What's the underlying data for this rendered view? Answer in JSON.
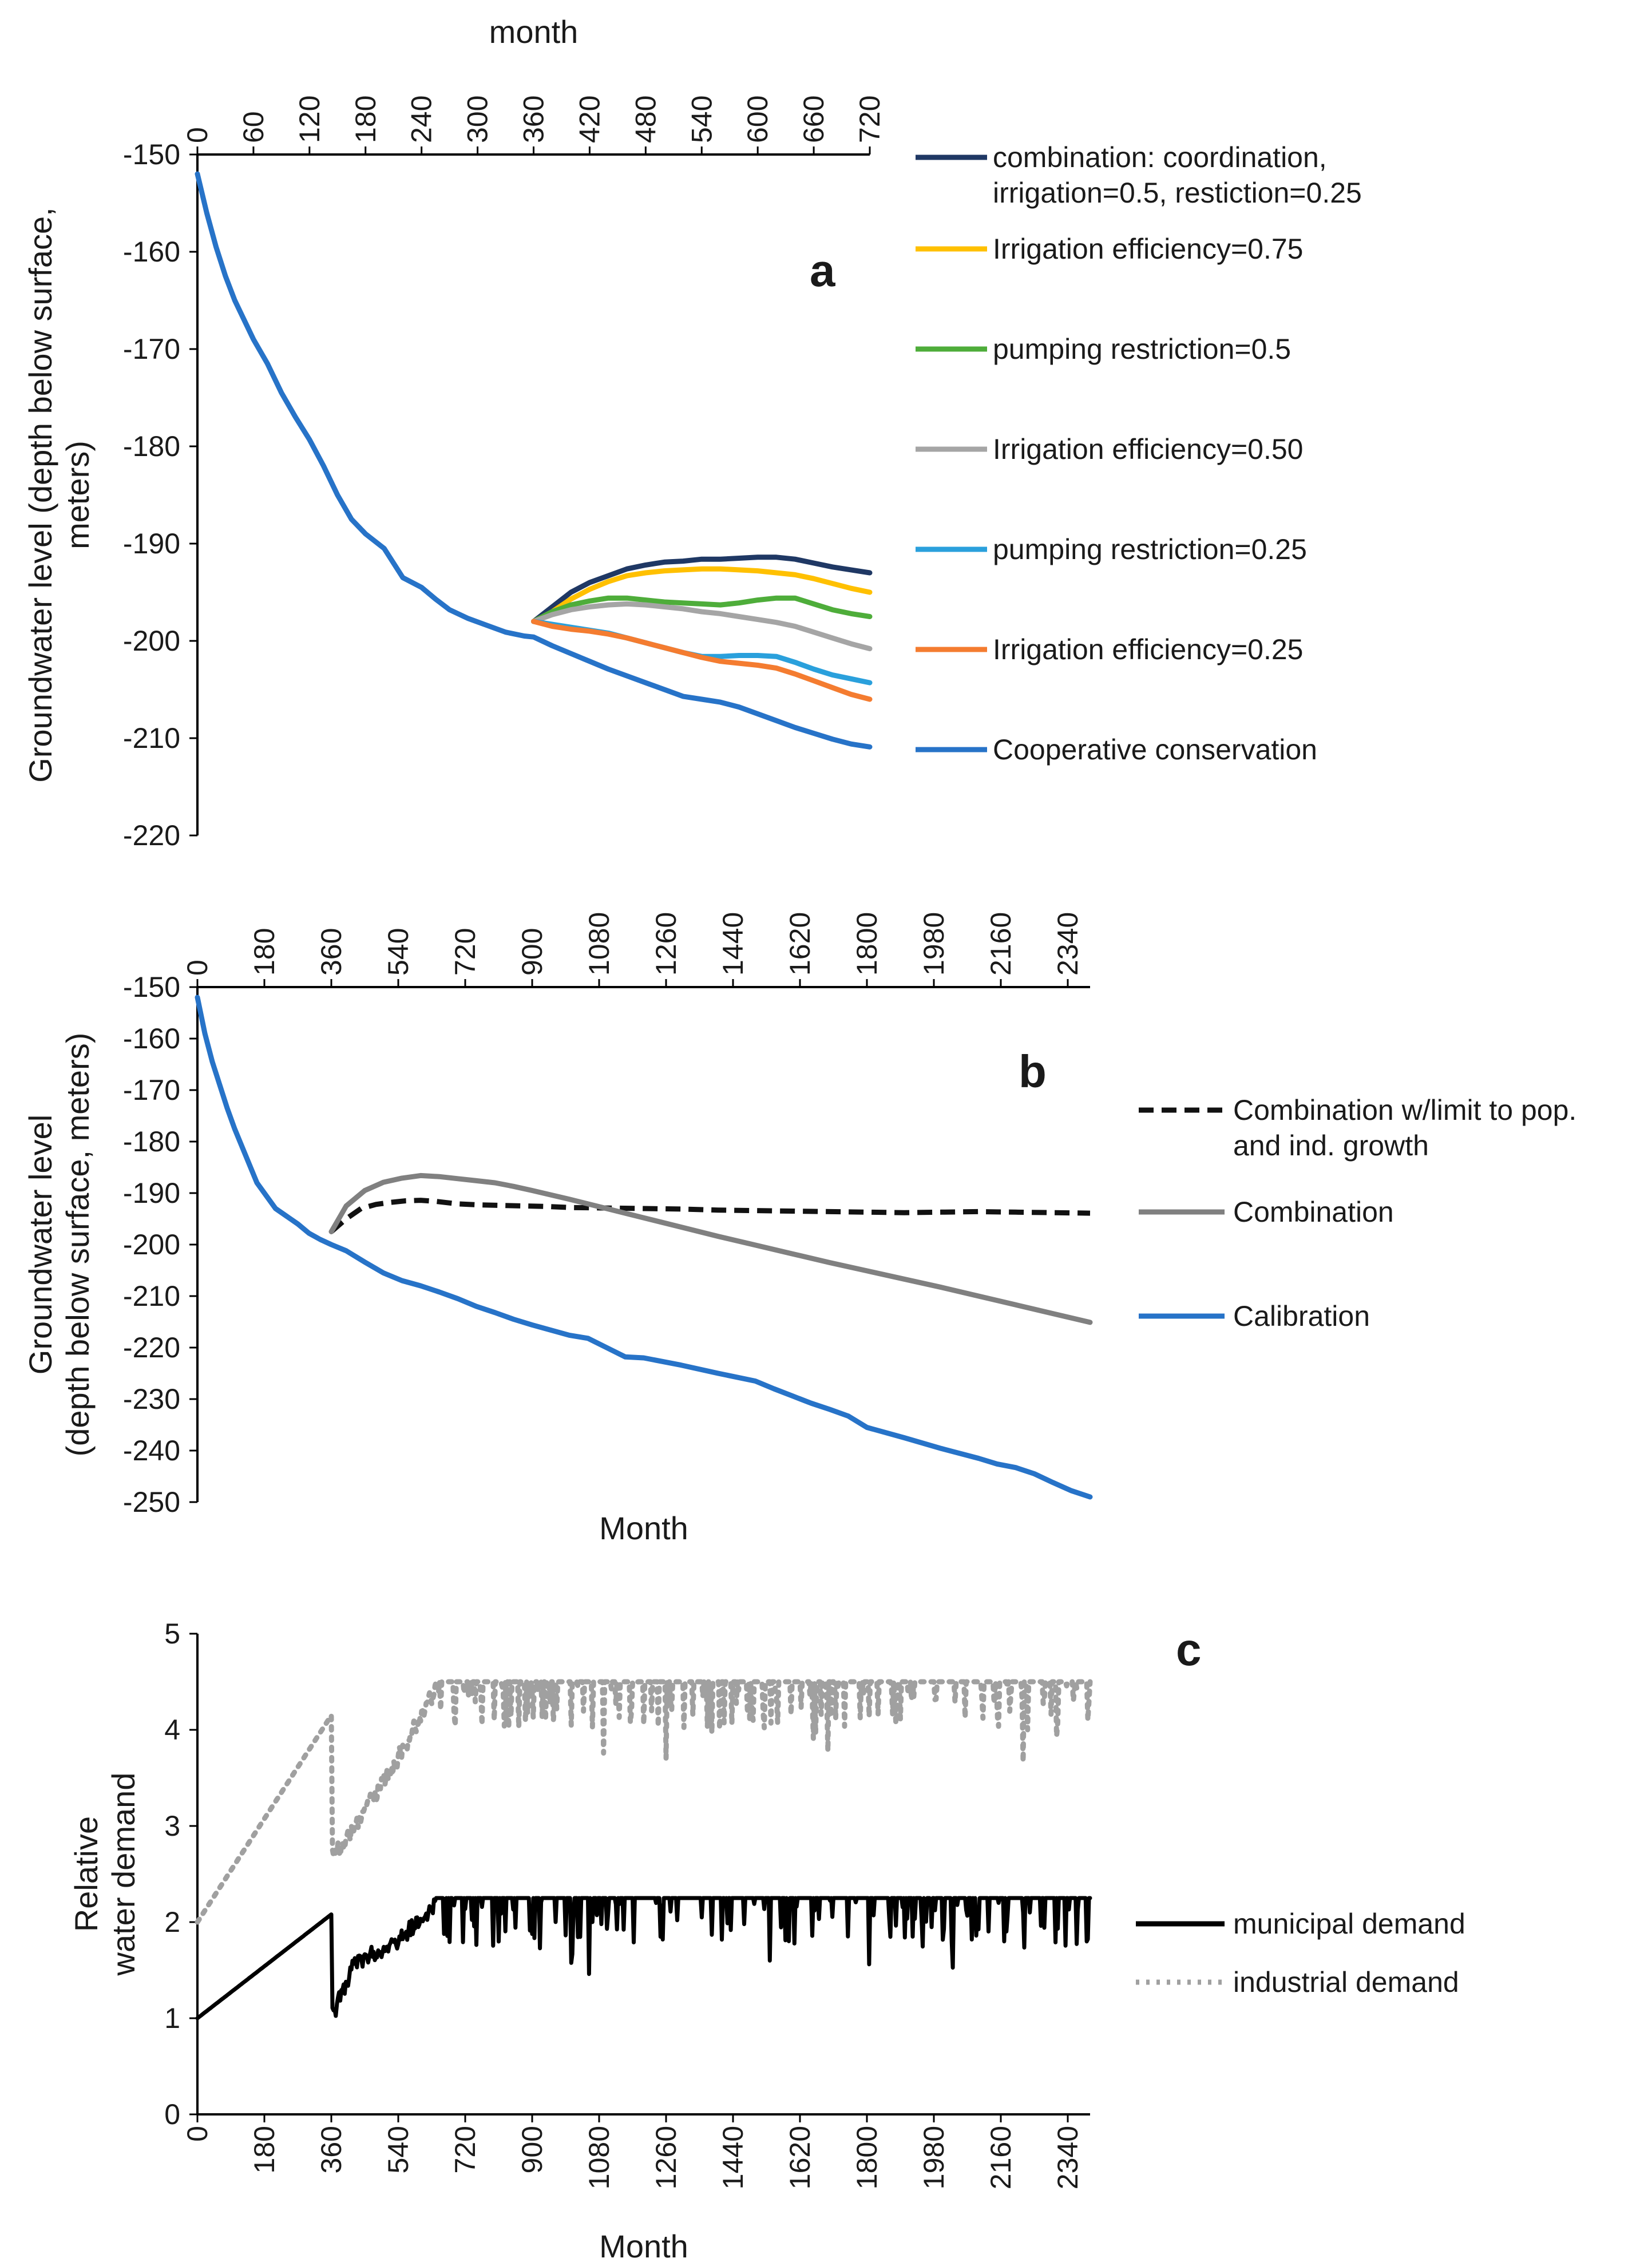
{
  "chart_data": [
    {
      "id": "a",
      "type": "line",
      "panel_label": "a",
      "title": "",
      "xlabel": "month",
      "ylabel_lines": [
        "Groundwater level (depth below surface,",
        "meters)"
      ],
      "xlim": [
        0,
        720
      ],
      "ylim": [
        -220,
        -150
      ],
      "xticks": [
        0,
        60,
        120,
        180,
        240,
        300,
        360,
        420,
        480,
        540,
        600,
        660,
        720
      ],
      "yticks": [
        -150,
        -160,
        -170,
        -180,
        -190,
        -200,
        -210,
        -220
      ],
      "legend_position": "right",
      "series": [
        {
          "name": "combination: coordination, irrigation=0.5, restiction=0.25",
          "legend_lines": [
            "combination: coordination,",
            "irrigation=0.5, restiction=0.25"
          ],
          "color": "#1f3864",
          "dash": "",
          "x": [
            360,
            380,
            400,
            420,
            440,
            460,
            480,
            500,
            520,
            540,
            560,
            580,
            600,
            620,
            640,
            660,
            680,
            700,
            720
          ],
          "y": [
            -198,
            -196.5,
            -195,
            -194,
            -193.3,
            -192.6,
            -192.2,
            -191.9,
            -191.8,
            -191.6,
            -191.6,
            -191.5,
            -191.4,
            -191.4,
            -191.6,
            -192,
            -192.4,
            -192.7,
            -193
          ]
        },
        {
          "name": "Irrigation efficiency=0.75",
          "color": "#ffc000",
          "dash": "",
          "x": [
            360,
            380,
            400,
            420,
            440,
            460,
            480,
            500,
            520,
            540,
            560,
            580,
            600,
            620,
            640,
            660,
            680,
            700,
            720
          ],
          "y": [
            -198,
            -197,
            -195.7,
            -194.7,
            -193.9,
            -193.3,
            -193,
            -192.8,
            -192.7,
            -192.6,
            -192.6,
            -192.7,
            -192.8,
            -193,
            -193.2,
            -193.6,
            -194.1,
            -194.6,
            -195
          ]
        },
        {
          "name": "pumping restriction=0.5",
          "color": "#4ead3a",
          "dash": "",
          "x": [
            360,
            380,
            400,
            420,
            440,
            460,
            480,
            500,
            520,
            540,
            560,
            580,
            600,
            620,
            640,
            660,
            680,
            700,
            720
          ],
          "y": [
            -198,
            -197,
            -196.3,
            -195.9,
            -195.6,
            -195.6,
            -195.8,
            -196,
            -196.1,
            -196.2,
            -196.3,
            -196.1,
            -195.8,
            -195.6,
            -195.6,
            -196.2,
            -196.8,
            -197.2,
            -197.5
          ]
        },
        {
          "name": "Irrigation efficiency=0.50",
          "color": "#a5a5a5",
          "dash": "",
          "x": [
            360,
            380,
            400,
            420,
            440,
            460,
            480,
            500,
            520,
            540,
            560,
            580,
            600,
            620,
            640,
            660,
            680,
            700,
            720
          ],
          "y": [
            -198,
            -197.3,
            -196.8,
            -196.5,
            -196.3,
            -196.2,
            -196.3,
            -196.5,
            -196.7,
            -197,
            -197.2,
            -197.5,
            -197.8,
            -198.1,
            -198.5,
            -199.1,
            -199.7,
            -200.3,
            -200.8
          ]
        },
        {
          "name": "pumping restriction=0.25",
          "color": "#2aa0dc",
          "dash": "",
          "x": [
            360,
            380,
            400,
            420,
            440,
            460,
            480,
            500,
            520,
            540,
            560,
            580,
            600,
            620,
            640,
            660,
            680,
            700,
            720
          ],
          "y": [
            -198,
            -198.3,
            -198.6,
            -198.9,
            -199.2,
            -199.7,
            -200.2,
            -200.7,
            -201.2,
            -201.6,
            -201.6,
            -201.5,
            -201.5,
            -201.6,
            -202.2,
            -202.9,
            -203.5,
            -203.9,
            -204.3
          ]
        },
        {
          "name": "Irrigation efficiency=0.25",
          "color": "#f47c30",
          "dash": "",
          "x": [
            360,
            380,
            400,
            420,
            440,
            460,
            480,
            500,
            520,
            540,
            560,
            580,
            600,
            620,
            640,
            660,
            680,
            700,
            720
          ],
          "y": [
            -198,
            -198.5,
            -198.8,
            -199,
            -199.3,
            -199.7,
            -200.2,
            -200.7,
            -201.2,
            -201.7,
            -202.1,
            -202.3,
            -202.5,
            -202.8,
            -203.4,
            -204.1,
            -204.8,
            -205.5,
            -206
          ]
        },
        {
          "name": "Cooperative conservation",
          "color": "#2773c8",
          "dash": "",
          "x": [
            0,
            10,
            20,
            30,
            40,
            50,
            60,
            75,
            90,
            105,
            120,
            135,
            150,
            165,
            180,
            200,
            220,
            240,
            255,
            270,
            290,
            310,
            330,
            350,
            360,
            380,
            400,
            420,
            440,
            460,
            480,
            500,
            520,
            540,
            560,
            580,
            600,
            620,
            640,
            660,
            680,
            700,
            720
          ],
          "y": [
            -152,
            -156,
            -159.5,
            -162.5,
            -165,
            -167,
            -169,
            -171.5,
            -174.5,
            -177,
            -179.3,
            -182,
            -185,
            -187.5,
            -189,
            -190.5,
            -193.5,
            -194.5,
            -195.7,
            -196.8,
            -197.7,
            -198.4,
            -199.1,
            -199.5,
            -199.6,
            -200.5,
            -201.3,
            -202.1,
            -202.9,
            -203.6,
            -204.3,
            -205,
            -205.7,
            -206,
            -206.3,
            -206.8,
            -207.5,
            -208.2,
            -208.9,
            -209.5,
            -210.1,
            -210.6,
            -210.9
          ]
        }
      ]
    },
    {
      "id": "b",
      "type": "line",
      "panel_label": "b",
      "title": "",
      "xlabel": "Month",
      "ylabel_lines": [
        "Groundwater level",
        "(depth below surface, meters)"
      ],
      "xlim": [
        0,
        2400
      ],
      "ylim": [
        -250,
        -150
      ],
      "xticks": [
        0,
        180,
        360,
        540,
        720,
        900,
        1080,
        1260,
        1440,
        1620,
        1800,
        1980,
        2160,
        2340
      ],
      "yticks": [
        -150,
        -160,
        -170,
        -180,
        -190,
        -200,
        -210,
        -220,
        -230,
        -240,
        -250
      ],
      "legend_position": "right",
      "series": [
        {
          "name": "Combination w/limit to pop. and ind. growth",
          "legend_lines": [
            "Combination w/limit to pop.",
            "and ind. growth"
          ],
          "color": "#111111",
          "dash": "26,14",
          "x": [
            360,
            400,
            440,
            480,
            520,
            560,
            600,
            640,
            700,
            760,
            820,
            880,
            940,
            1000,
            1100,
            1200,
            1300,
            1400,
            1500,
            1600,
            1700,
            1800,
            1900,
            2000,
            2100,
            2200,
            2300,
            2400
          ],
          "y": [
            -197.5,
            -195,
            -193,
            -192.2,
            -191.8,
            -191.5,
            -191.4,
            -191.6,
            -192.1,
            -192.3,
            -192.4,
            -192.5,
            -192.6,
            -192.8,
            -192.9,
            -193,
            -193.1,
            -193.3,
            -193.4,
            -193.5,
            -193.6,
            -193.7,
            -193.8,
            -193.7,
            -193.6,
            -193.7,
            -193.8,
            -193.9
          ]
        },
        {
          "name": "Combination",
          "color": "#808080",
          "dash": "",
          "x": [
            360,
            400,
            450,
            500,
            550,
            600,
            650,
            700,
            750,
            800,
            850,
            900,
            1000,
            1100,
            1200,
            1300,
            1400,
            1500,
            1600,
            1700,
            1800,
            1900,
            2000,
            2100,
            2200,
            2300,
            2400
          ],
          "y": [
            -197.5,
            -192.5,
            -189.5,
            -187.9,
            -187.1,
            -186.6,
            -186.8,
            -187.2,
            -187.6,
            -188,
            -188.7,
            -189.5,
            -191.2,
            -193,
            -194.8,
            -196.6,
            -198.4,
            -200.1,
            -201.8,
            -203.5,
            -205.1,
            -206.7,
            -208.3,
            -210,
            -211.7,
            -213.4,
            -215.1
          ]
        },
        {
          "name": "Calibration",
          "color": "#2773c8",
          "dash": "",
          "x": [
            0,
            20,
            40,
            60,
            80,
            100,
            120,
            140,
            160,
            180,
            210,
            240,
            270,
            300,
            330,
            360,
            400,
            450,
            500,
            550,
            600,
            650,
            700,
            750,
            800,
            850,
            900,
            950,
            1000,
            1050,
            1100,
            1150,
            1200,
            1300,
            1400,
            1500,
            1550,
            1600,
            1650,
            1700,
            1750,
            1800,
            1900,
            2000,
            2100,
            2150,
            2200,
            2250,
            2300,
            2350,
            2400
          ],
          "y": [
            -152,
            -159,
            -164.5,
            -169,
            -173.5,
            -177.5,
            -181,
            -184.5,
            -188,
            -190,
            -193,
            -194.5,
            -196,
            -197.8,
            -199,
            -200,
            -201.2,
            -203.4,
            -205.5,
            -207,
            -208,
            -209.2,
            -210.5,
            -212,
            -213.2,
            -214.5,
            -215.6,
            -216.6,
            -217.6,
            -218.2,
            -220,
            -221.8,
            -222,
            -223.4,
            -225,
            -226.5,
            -228,
            -229.4,
            -230.8,
            -232,
            -233.3,
            -235.5,
            -237.5,
            -239.6,
            -241.5,
            -242.6,
            -243.3,
            -244.5,
            -246.2,
            -247.8,
            -249
          ]
        }
      ]
    },
    {
      "id": "c",
      "type": "line",
      "panel_label": "c",
      "title": "",
      "xlabel": "Month",
      "ylabel_lines": [
        "Relative",
        "water demand"
      ],
      "xlim": [
        0,
        2400
      ],
      "ylim": [
        0,
        5
      ],
      "xticks": [
        0,
        180,
        360,
        540,
        720,
        900,
        1080,
        1260,
        1440,
        1620,
        1800,
        1980,
        2160,
        2340
      ],
      "yticks": [
        0,
        1,
        2,
        3,
        4,
        5
      ],
      "legend_position": "right",
      "series": [
        {
          "name": "municipal demand",
          "color": "#000000",
          "dash": "",
          "cap": 2.25,
          "dip_depth": 0.5,
          "x": [
            0,
            360,
            362,
            420,
            540,
            640,
            2400
          ],
          "y": [
            1.0,
            2.08,
            1.1,
            1.65,
            1.9,
            2.25,
            2.25
          ]
        },
        {
          "name": "industrial demand",
          "color": "#a0a0a0",
          "dash": "6,12",
          "cap": 4.5,
          "dip_depth": 0.5,
          "x": [
            0,
            360,
            362,
            420,
            540,
            640,
            2400
          ],
          "y": [
            2.0,
            4.15,
            2.75,
            3.05,
            3.8,
            4.5,
            4.5
          ]
        }
      ]
    }
  ]
}
